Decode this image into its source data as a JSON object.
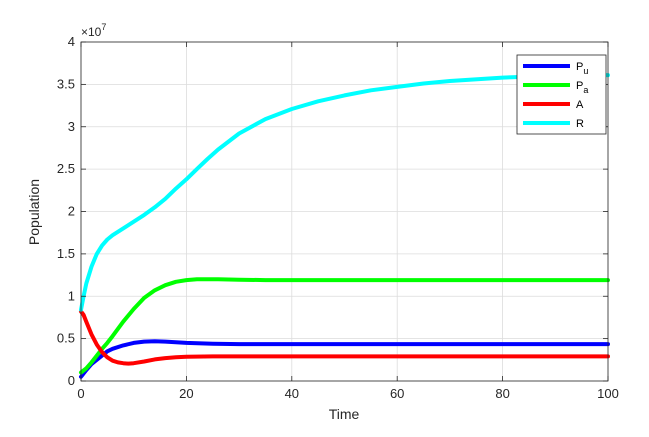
{
  "chart_data": {
    "type": "line",
    "title": "",
    "xlabel": "Time",
    "ylabel": "Population",
    "xlim": [
      0,
      100
    ],
    "ylim": [
      0,
      4
    ],
    "y_multiplier_label": "×10",
    "y_multiplier_exponent": "7",
    "grid": true,
    "legend_position": "top-right",
    "x_ticks": [
      "0",
      "20",
      "40",
      "60",
      "80",
      "100"
    ],
    "x_tick_values": [
      0,
      20,
      40,
      60,
      80,
      100
    ],
    "y_ticks": [
      "0",
      "0.5",
      "1",
      "1.5",
      "2",
      "2.5",
      "3",
      "3.5",
      "4"
    ],
    "y_tick_values": [
      0,
      0.5,
      1,
      1.5,
      2,
      2.5,
      3,
      3.5,
      4
    ],
    "series": [
      {
        "name_main": "P",
        "name_sub": "u",
        "color": "#0000ff",
        "x": [
          0,
          1,
          2,
          3,
          4,
          5,
          6,
          8,
          10,
          12,
          14,
          16,
          20,
          25,
          30,
          40,
          50,
          60,
          70,
          80,
          90,
          100
        ],
        "y": [
          0.05,
          0.13,
          0.2,
          0.25,
          0.3,
          0.35,
          0.38,
          0.42,
          0.45,
          0.465,
          0.47,
          0.465,
          0.45,
          0.44,
          0.435,
          0.435,
          0.435,
          0.435,
          0.435,
          0.435,
          0.435,
          0.435
        ]
      },
      {
        "name_main": "P",
        "name_sub": "a",
        "color": "#00ff00",
        "x": [
          0,
          1,
          2,
          3,
          4,
          5,
          6,
          8,
          10,
          12,
          14,
          16,
          18,
          20,
          22,
          24,
          26,
          30,
          35,
          40,
          50,
          60,
          70,
          80,
          90,
          100
        ],
        "y": [
          0.1,
          0.15,
          0.22,
          0.3,
          0.38,
          0.45,
          0.53,
          0.7,
          0.85,
          0.98,
          1.07,
          1.13,
          1.17,
          1.19,
          1.2,
          1.2,
          1.2,
          1.195,
          1.19,
          1.19,
          1.19,
          1.19,
          1.19,
          1.19,
          1.19,
          1.19
        ]
      },
      {
        "name_main": "A",
        "name_sub": "",
        "color": "#ff0000",
        "x": [
          0,
          0.5,
          1,
          2,
          3,
          4,
          5,
          6,
          7,
          8,
          9,
          10,
          12,
          14,
          16,
          18,
          20,
          25,
          30,
          40,
          50,
          60,
          70,
          80,
          90,
          100
        ],
        "y": [
          0.82,
          0.78,
          0.7,
          0.55,
          0.43,
          0.34,
          0.28,
          0.24,
          0.22,
          0.21,
          0.205,
          0.21,
          0.23,
          0.255,
          0.27,
          0.28,
          0.285,
          0.29,
          0.29,
          0.29,
          0.29,
          0.29,
          0.29,
          0.29,
          0.29,
          0.29
        ]
      },
      {
        "name_main": "R",
        "name_sub": "",
        "color": "#00ffff",
        "x": [
          0,
          0.5,
          1,
          2,
          3,
          4,
          5,
          6,
          8,
          10,
          12,
          14,
          16,
          18,
          20,
          22,
          24,
          26,
          30,
          35,
          40,
          45,
          50,
          55,
          60,
          65,
          70,
          80,
          90,
          100
        ],
        "y": [
          0.84,
          1.0,
          1.15,
          1.35,
          1.5,
          1.6,
          1.67,
          1.72,
          1.8,
          1.88,
          1.96,
          2.05,
          2.15,
          2.27,
          2.38,
          2.5,
          2.62,
          2.73,
          2.92,
          3.09,
          3.21,
          3.3,
          3.37,
          3.43,
          3.47,
          3.51,
          3.54,
          3.58,
          3.6,
          3.61
        ]
      }
    ]
  }
}
